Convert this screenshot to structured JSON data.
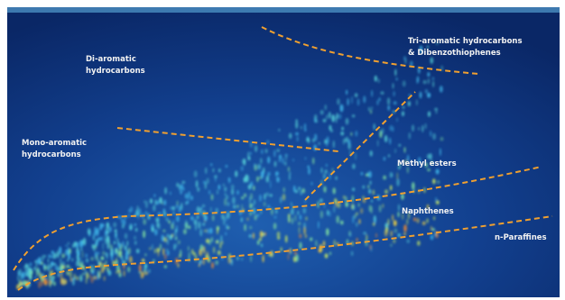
{
  "labels": [
    {
      "lines": [
        "Di-aromatic",
        "hydrocarbons"
      ]
    },
    {
      "lines": [
        "Tri-aromatic hydrocarbons",
        "& Dibenzothiophenes"
      ]
    },
    {
      "lines": [
        "Mono-aromatic",
        "hydrocarbons"
      ]
    },
    {
      "lines": [
        "Methyl esters"
      ]
    },
    {
      "lines": [
        "Naphthenes"
      ]
    },
    {
      "lines": [
        "n-Paraffines"
      ]
    }
  ]
}
